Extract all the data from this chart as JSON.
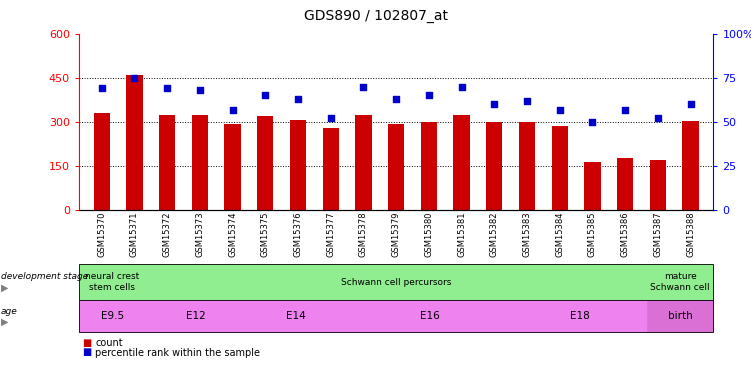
{
  "title": "GDS890 / 102807_at",
  "samples": [
    "GSM15370",
    "GSM15371",
    "GSM15372",
    "GSM15373",
    "GSM15374",
    "GSM15375",
    "GSM15376",
    "GSM15377",
    "GSM15378",
    "GSM15379",
    "GSM15380",
    "GSM15381",
    "GSM15382",
    "GSM15383",
    "GSM15384",
    "GSM15385",
    "GSM15386",
    "GSM15387",
    "GSM15388"
  ],
  "counts": [
    330,
    460,
    325,
    325,
    293,
    320,
    305,
    280,
    325,
    293,
    298,
    325,
    298,
    300,
    285,
    165,
    178,
    170,
    302
  ],
  "percentiles": [
    69,
    75,
    69,
    68,
    57,
    65,
    63,
    52,
    70,
    63,
    65,
    70,
    60,
    62,
    57,
    50,
    57,
    52,
    60
  ],
  "bar_color": "#cc0000",
  "dot_color": "#0000cc",
  "ylim_left": [
    0,
    600
  ],
  "ylim_right": [
    0,
    100
  ],
  "yticks_left": [
    0,
    150,
    300,
    450,
    600
  ],
  "yticks_right": [
    0,
    25,
    50,
    75,
    100
  ],
  "ytick_labels_right": [
    "0",
    "25",
    "50",
    "75",
    "100%"
  ],
  "grid_lines": [
    150,
    300,
    450
  ],
  "dev_groups": [
    {
      "label": "neural crest\nstem cells",
      "start": 0,
      "end": 2,
      "color": "#90ee90"
    },
    {
      "label": "Schwann cell percursors",
      "start": 2,
      "end": 17,
      "color": "#90ee90"
    },
    {
      "label": "mature\nSchwann cell",
      "start": 17,
      "end": 19,
      "color": "#90ee90"
    }
  ],
  "age_groups": [
    {
      "label": "E9.5",
      "start": 0,
      "end": 2,
      "color": "#ee82ee"
    },
    {
      "label": "E12",
      "start": 2,
      "end": 5,
      "color": "#ee82ee"
    },
    {
      "label": "E14",
      "start": 5,
      "end": 8,
      "color": "#ee82ee"
    },
    {
      "label": "E16",
      "start": 8,
      "end": 13,
      "color": "#ee82ee"
    },
    {
      "label": "E18",
      "start": 13,
      "end": 17,
      "color": "#ee82ee"
    },
    {
      "label": "birth",
      "start": 17,
      "end": 19,
      "color": "#da70d6"
    }
  ],
  "bar_width": 0.5,
  "legend_items": [
    {
      "label": "count",
      "color": "#cc0000"
    },
    {
      "label": "percentile rank within the sample",
      "color": "#0000cc"
    }
  ]
}
